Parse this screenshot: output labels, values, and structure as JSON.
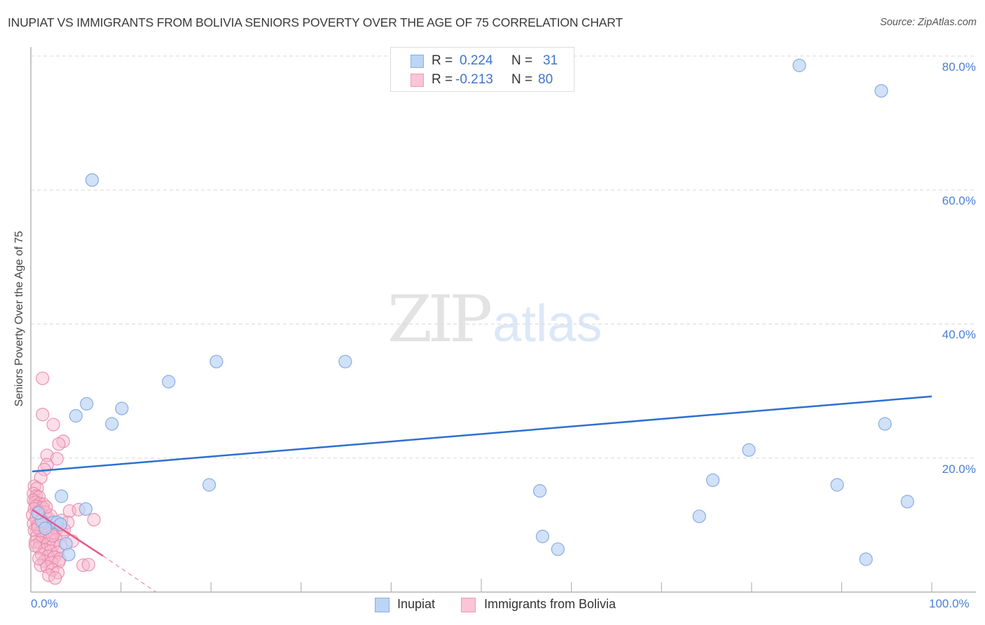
{
  "header": {
    "title": "INUPIAT VS IMMIGRANTS FROM BOLIVIA SENIORS POVERTY OVER THE AGE OF 75 CORRELATION CHART",
    "source": "Source: ZipAtlas.com"
  },
  "stats_box": {
    "rows": [
      {
        "series": "Inupiat",
        "r_label": "R =",
        "r_value": "0.224",
        "n_label": "N =",
        "n_value": "31"
      },
      {
        "series": "Immigrants from Bolivia",
        "r_label": "R =",
        "r_value": "-0.213",
        "n_label": "N =",
        "n_value": "80"
      }
    ]
  },
  "axes": {
    "y_label": "Seniors Poverty Over the Age of 75",
    "y_ticks": [
      "80.0%",
      "60.0%",
      "40.0%",
      "20.0%"
    ],
    "x_ticks": [
      "0.0%",
      "100.0%"
    ]
  },
  "legend": {
    "items": [
      {
        "label": "Inupiat"
      },
      {
        "label": "Immigrants from Bolivia"
      }
    ]
  },
  "watermark": {
    "zip": "ZIP",
    "atlas": "atlas"
  },
  "colors": {
    "blue_fill": "#bcd4f5",
    "blue_stroke": "#7fa5e0",
    "blue_line": "#2f6fcf",
    "pink_fill": "#f7b6cb",
    "pink_stroke": "#e98aab",
    "pink_line": "#e8568a",
    "axis_text": "#4a7fd4",
    "grid": "#d8d8d8"
  },
  "chart_data": {
    "type": "scatter",
    "title": "INUPIAT VS IMMIGRANTS FROM BOLIVIA SENIORS POVERTY OVER THE AGE OF 75 CORRELATION CHART",
    "xlabel": "",
    "ylabel": "Seniors Poverty Over the Age of 75",
    "xlim": [
      0,
      100
    ],
    "ylim": [
      0,
      80
    ],
    "x_tick_labels": [
      "0.0%",
      "100.0%"
    ],
    "y_tick_labels": [
      "20.0%",
      "40.0%",
      "60.0%",
      "80.0%"
    ],
    "grid": {
      "horizontal": true,
      "vertical": false,
      "style": "dashed"
    },
    "legend_position": "bottom",
    "series": [
      {
        "name": "Inupiat",
        "R": 0.224,
        "N": 31,
        "trend": {
          "x": [
            0,
            100
          ],
          "y": [
            18.0,
            29.2
          ]
        },
        "points": [
          [
            85.3,
            78.6
          ],
          [
            94.4,
            74.8
          ],
          [
            6.8,
            61.5
          ],
          [
            20.6,
            34.4
          ],
          [
            34.9,
            34.4
          ],
          [
            15.3,
            31.4
          ],
          [
            6.2,
            28.1
          ],
          [
            10.1,
            27.4
          ],
          [
            5.0,
            26.3
          ],
          [
            9.0,
            25.1
          ],
          [
            94.8,
            25.1
          ],
          [
            79.7,
            21.2
          ],
          [
            19.8,
            16.0
          ],
          [
            75.7,
            16.7
          ],
          [
            89.5,
            16.0
          ],
          [
            56.5,
            15.1
          ],
          [
            97.3,
            13.5
          ],
          [
            3.4,
            14.3
          ],
          [
            6.1,
            12.4
          ],
          [
            74.2,
            11.3
          ],
          [
            56.8,
            8.3
          ],
          [
            58.5,
            6.4
          ],
          [
            92.7,
            4.9
          ],
          [
            3.9,
            7.2
          ],
          [
            4.2,
            5.6
          ],
          [
            2.5,
            10.4
          ],
          [
            2.9,
            10.4
          ],
          [
            1.2,
            10.6
          ],
          [
            0.8,
            11.8
          ],
          [
            1.6,
            9.5
          ],
          [
            3.3,
            10.1
          ]
        ]
      },
      {
        "name": "Immigrants from Bolivia",
        "R": -0.213,
        "N": 80,
        "trend": {
          "x": [
            0,
            8.0
          ],
          "y": [
            12.3,
            5.4
          ],
          "dashed_extension_to": [
            13.9,
            0
          ]
        },
        "points": [
          [
            1.3,
            31.9
          ],
          [
            1.3,
            26.5
          ],
          [
            2.5,
            25.0
          ],
          [
            3.6,
            22.5
          ],
          [
            3.1,
            22.1
          ],
          [
            1.8,
            20.4
          ],
          [
            2.9,
            19.9
          ],
          [
            1.8,
            19.0
          ],
          [
            1.5,
            18.3
          ],
          [
            1.1,
            17.1
          ],
          [
            0.4,
            15.8
          ],
          [
            0.7,
            15.5
          ],
          [
            0.3,
            14.7
          ],
          [
            0.6,
            14.3
          ],
          [
            0.9,
            14.2
          ],
          [
            0.3,
            13.7
          ],
          [
            0.5,
            13.4
          ],
          [
            1.0,
            13.2
          ],
          [
            1.4,
            13.1
          ],
          [
            0.6,
            12.8
          ],
          [
            1.3,
            12.6
          ],
          [
            0.4,
            12.4
          ],
          [
            0.9,
            12.0
          ],
          [
            1.6,
            11.9
          ],
          [
            4.3,
            12.1
          ],
          [
            5.3,
            12.3
          ],
          [
            0.2,
            11.5
          ],
          [
            0.6,
            11.0
          ],
          [
            1.2,
            10.8
          ],
          [
            2.0,
            10.9
          ],
          [
            3.4,
            10.7
          ],
          [
            4.1,
            10.4
          ],
          [
            7.0,
            10.8
          ],
          [
            0.3,
            10.2
          ],
          [
            0.8,
            10.0
          ],
          [
            1.5,
            9.8
          ],
          [
            2.3,
            9.9
          ],
          [
            3.0,
            9.6
          ],
          [
            0.4,
            9.2
          ],
          [
            1.1,
            9.0
          ],
          [
            1.7,
            8.9
          ],
          [
            2.6,
            8.8
          ],
          [
            3.5,
            8.7
          ],
          [
            0.7,
            8.3
          ],
          [
            1.3,
            8.1
          ],
          [
            2.1,
            7.9
          ],
          [
            2.8,
            7.8
          ],
          [
            0.5,
            7.5
          ],
          [
            1.0,
            7.4
          ],
          [
            1.9,
            7.2
          ],
          [
            2.5,
            7.0
          ],
          [
            3.3,
            6.9
          ],
          [
            0.9,
            6.6
          ],
          [
            1.6,
            6.3
          ],
          [
            2.2,
            6.1
          ],
          [
            3.0,
            5.9
          ],
          [
            1.2,
            5.6
          ],
          [
            1.9,
            5.3
          ],
          [
            2.6,
            5.2
          ],
          [
            3.2,
            4.9
          ],
          [
            1.5,
            4.6
          ],
          [
            2.3,
            4.4
          ],
          [
            3.1,
            4.5
          ],
          [
            1.1,
            4.0
          ],
          [
            1.8,
            3.8
          ],
          [
            5.8,
            4.0
          ],
          [
            6.4,
            4.1
          ],
          [
            2.4,
            3.3
          ],
          [
            3.0,
            2.9
          ],
          [
            2.0,
            2.5
          ],
          [
            2.7,
            2.1
          ],
          [
            0.8,
            9.6
          ],
          [
            1.4,
            10.3
          ],
          [
            2.2,
            11.4
          ],
          [
            0.5,
            6.9
          ],
          [
            1.7,
            12.7
          ],
          [
            2.4,
            8.4
          ],
          [
            3.7,
            9.3
          ],
          [
            0.9,
            5.0
          ],
          [
            4.6,
            7.6
          ]
        ]
      }
    ]
  }
}
